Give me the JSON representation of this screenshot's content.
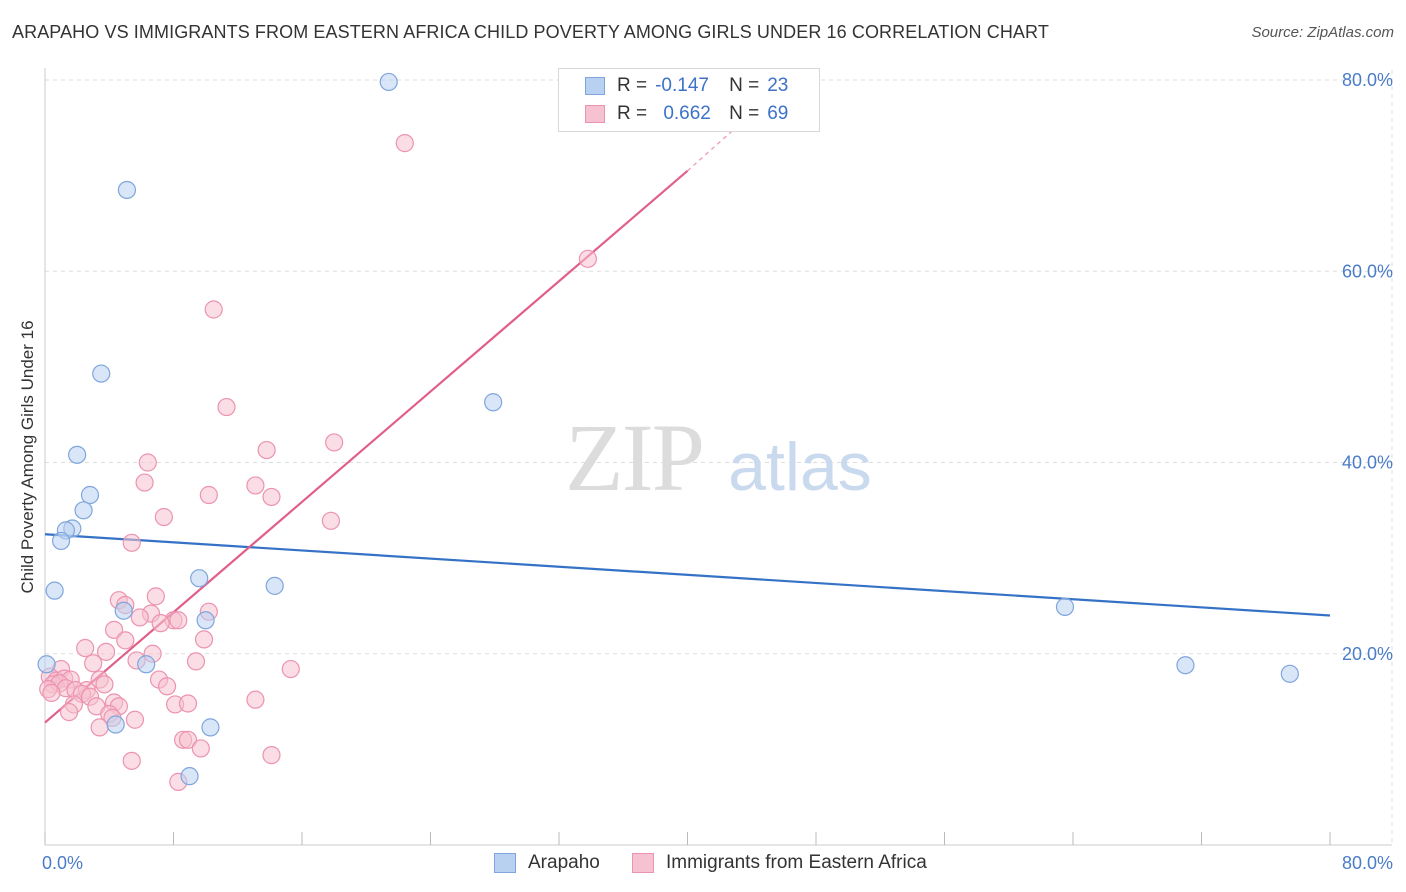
{
  "title": "ARAPAHO VS IMMIGRANTS FROM EASTERN AFRICA CHILD POVERTY AMONG GIRLS UNDER 16 CORRELATION CHART",
  "source": "Source: ZipAtlas.com",
  "watermark": {
    "zip": "ZIP",
    "atlas": "atlas"
  },
  "colors": {
    "blue_fill": "#b9d1f0",
    "blue_stroke": "#7ea6dd",
    "blue_line": "#3572c6",
    "pink_fill": "#f6c1d0",
    "pink_stroke": "#ec93b0",
    "pink_line": "#e0608a",
    "axis_text": "#4a7cc9",
    "grid": "#dddddd"
  },
  "legend": {
    "rows": [
      {
        "r_label": "R =",
        "r_value": "-0.147",
        "n_label": "N =",
        "n_value": "23"
      },
      {
        "r_label": "R =",
        "r_value": "0.662",
        "n_label": "N =",
        "n_value": "69"
      }
    ]
  },
  "bottom_legend": {
    "series1": "Arapaho",
    "series2": "Immigrants from Eastern Africa"
  },
  "chart_data": {
    "type": "scatter",
    "title": "ARAPAHO VS IMMIGRANTS FROM EASTERN AFRICA CHILD POVERTY AMONG GIRLS UNDER 16 CORRELATION CHART",
    "xlabel": "",
    "ylabel": "Child Poverty Among Girls Under 16",
    "xlim": [
      0,
      80
    ],
    "ylim": [
      0,
      80
    ],
    "x_tick_labels": [
      "0.0%",
      "80.0%"
    ],
    "y_ticks": [
      20,
      40,
      60,
      80
    ],
    "y_tick_labels": [
      "20.0%",
      "40.0%",
      "60.0%",
      "80.0%"
    ],
    "grid": true,
    "series": [
      {
        "name": "Arapaho",
        "r": -0.147,
        "n": 23,
        "trend": {
          "x": [
            0,
            80
          ],
          "y": [
            32.5,
            24.0
          ]
        },
        "points": [
          {
            "x": 21.4,
            "y": 79.8
          },
          {
            "x": 5.1,
            "y": 68.5
          },
          {
            "x": 3.5,
            "y": 49.3
          },
          {
            "x": 27.9,
            "y": 46.3
          },
          {
            "x": 2.0,
            "y": 40.8
          },
          {
            "x": 2.8,
            "y": 36.6
          },
          {
            "x": 2.4,
            "y": 35.0
          },
          {
            "x": 1.7,
            "y": 33.1
          },
          {
            "x": 1.3,
            "y": 32.9
          },
          {
            "x": 1.0,
            "y": 31.8
          },
          {
            "x": 0.6,
            "y": 26.6
          },
          {
            "x": 9.6,
            "y": 27.9
          },
          {
            "x": 14.3,
            "y": 27.1
          },
          {
            "x": 4.9,
            "y": 24.5
          },
          {
            "x": 10.0,
            "y": 23.5
          },
          {
            "x": 63.5,
            "y": 24.9
          },
          {
            "x": 0.1,
            "y": 18.9
          },
          {
            "x": 6.3,
            "y": 18.9
          },
          {
            "x": 71.0,
            "y": 18.8
          },
          {
            "x": 77.5,
            "y": 17.9
          },
          {
            "x": 4.4,
            "y": 12.6
          },
          {
            "x": 10.3,
            "y": 12.3
          },
          {
            "x": 9.0,
            "y": 7.2
          }
        ]
      },
      {
        "name": "Immigrants from Eastern Africa",
        "r": 0.662,
        "n": 69,
        "trend": {
          "x": [
            0,
            40
          ],
          "y": [
            12.8,
            70.5
          ]
        },
        "trend_dashed": {
          "x": [
            40,
            43
          ],
          "y": [
            70.5,
            75.0
          ]
        },
        "points": [
          {
            "x": 22.4,
            "y": 73.4
          },
          {
            "x": 33.8,
            "y": 61.3
          },
          {
            "x": 10.5,
            "y": 56.0
          },
          {
            "x": 11.3,
            "y": 45.8
          },
          {
            "x": 18.0,
            "y": 42.1
          },
          {
            "x": 13.8,
            "y": 41.3
          },
          {
            "x": 6.4,
            "y": 40.0
          },
          {
            "x": 6.2,
            "y": 37.9
          },
          {
            "x": 13.1,
            "y": 37.6
          },
          {
            "x": 10.2,
            "y": 36.6
          },
          {
            "x": 14.1,
            "y": 36.4
          },
          {
            "x": 7.4,
            "y": 34.3
          },
          {
            "x": 17.8,
            "y": 33.9
          },
          {
            "x": 5.4,
            "y": 31.6
          },
          {
            "x": 6.9,
            "y": 26.0
          },
          {
            "x": 4.6,
            "y": 25.6
          },
          {
            "x": 5.0,
            "y": 25.1
          },
          {
            "x": 6.6,
            "y": 24.2
          },
          {
            "x": 10.2,
            "y": 24.4
          },
          {
            "x": 5.9,
            "y": 23.8
          },
          {
            "x": 8.0,
            "y": 23.5
          },
          {
            "x": 8.3,
            "y": 23.5
          },
          {
            "x": 7.2,
            "y": 23.2
          },
          {
            "x": 4.3,
            "y": 22.5
          },
          {
            "x": 5.0,
            "y": 21.4
          },
          {
            "x": 9.9,
            "y": 21.5
          },
          {
            "x": 2.5,
            "y": 20.6
          },
          {
            "x": 3.8,
            "y": 20.2
          },
          {
            "x": 6.7,
            "y": 20.0
          },
          {
            "x": 5.7,
            "y": 19.3
          },
          {
            "x": 9.4,
            "y": 19.2
          },
          {
            "x": 3.0,
            "y": 19.0
          },
          {
            "x": 1.0,
            "y": 18.4
          },
          {
            "x": 15.3,
            "y": 18.4
          },
          {
            "x": 0.3,
            "y": 17.6
          },
          {
            "x": 0.7,
            "y": 17.2
          },
          {
            "x": 1.2,
            "y": 17.4
          },
          {
            "x": 1.6,
            "y": 17.3
          },
          {
            "x": 3.4,
            "y": 17.3
          },
          {
            "x": 7.1,
            "y": 17.3
          },
          {
            "x": 0.5,
            "y": 16.8
          },
          {
            "x": 0.9,
            "y": 16.9
          },
          {
            "x": 3.7,
            "y": 16.8
          },
          {
            "x": 7.6,
            "y": 16.6
          },
          {
            "x": 0.2,
            "y": 16.3
          },
          {
            "x": 1.3,
            "y": 16.4
          },
          {
            "x": 1.9,
            "y": 16.2
          },
          {
            "x": 2.6,
            "y": 16.2
          },
          {
            "x": 2.3,
            "y": 15.8
          },
          {
            "x": 2.8,
            "y": 15.5
          },
          {
            "x": 13.1,
            "y": 15.2
          },
          {
            "x": 4.3,
            "y": 14.9
          },
          {
            "x": 1.8,
            "y": 14.7
          },
          {
            "x": 3.2,
            "y": 14.5
          },
          {
            "x": 4.6,
            "y": 14.5
          },
          {
            "x": 8.1,
            "y": 14.7
          },
          {
            "x": 8.9,
            "y": 14.8
          },
          {
            "x": 1.5,
            "y": 13.9
          },
          {
            "x": 4.0,
            "y": 13.7
          },
          {
            "x": 4.2,
            "y": 13.3
          },
          {
            "x": 5.6,
            "y": 13.1
          },
          {
            "x": 3.4,
            "y": 12.3
          },
          {
            "x": 8.6,
            "y": 11.0
          },
          {
            "x": 8.9,
            "y": 11.0
          },
          {
            "x": 9.7,
            "y": 10.1
          },
          {
            "x": 14.1,
            "y": 9.4
          },
          {
            "x": 5.4,
            "y": 8.8
          },
          {
            "x": 8.3,
            "y": 6.6
          },
          {
            "x": 0.4,
            "y": 15.9
          }
        ]
      }
    ]
  }
}
